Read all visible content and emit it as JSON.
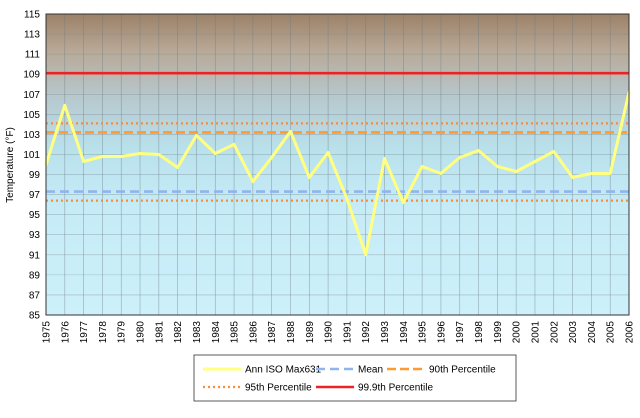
{
  "chart_data": {
    "type": "line",
    "title": "",
    "xlabel": "",
    "ylabel": "Temperature (°F)",
    "ylim": [
      85,
      115
    ],
    "yticks": [
      "85",
      "87",
      "89",
      "91",
      "93",
      "95",
      "97",
      "99",
      "101",
      "103",
      "105",
      "107",
      "109",
      "111",
      "113",
      "115"
    ],
    "categories": [
      "1975",
      "1976",
      "1977",
      "1978",
      "1979",
      "1980",
      "1981",
      "1982",
      "1983",
      "1984",
      "1985",
      "1986",
      "1987",
      "1988",
      "1989",
      "1990",
      "1991",
      "1992",
      "1993",
      "1994",
      "1995",
      "1996",
      "1997",
      "1998",
      "1999",
      "2000",
      "2001",
      "2002",
      "2003",
      "2004",
      "2005",
      "2006"
    ],
    "grid": true,
    "legend_position": "bottom",
    "series": [
      {
        "name": "Ann ISO Max631",
        "color": "#ffff80",
        "style": "solid",
        "values": [
          100,
          105.9,
          100.3,
          100.8,
          100.8,
          101.1,
          101.0,
          99.7,
          102.9,
          101.1,
          102.0,
          98.3,
          100.7,
          103.3,
          98.7,
          101.2,
          96.6,
          91.0,
          100.6,
          96.2,
          99.8,
          99.1,
          100.7,
          101.4,
          99.8,
          99.3,
          100.3,
          101.3,
          98.7,
          99.1,
          99.1,
          107.2
        ]
      },
      {
        "name": "Mean",
        "color": "#8fb4ee",
        "style": "dashed",
        "value": 97.3
      },
      {
        "name": "90th Percentile",
        "color": "#ff9933",
        "style": "dashed",
        "value": 103.2
      },
      {
        "name": "95th Percentile",
        "color": "#ff8a33",
        "style": "dotted",
        "values_lines": [
          96.4,
          104.1
        ]
      },
      {
        "name": "99.9th Percentile",
        "color": "#ee2222",
        "style": "solid",
        "value": 109.1
      }
    ]
  }
}
